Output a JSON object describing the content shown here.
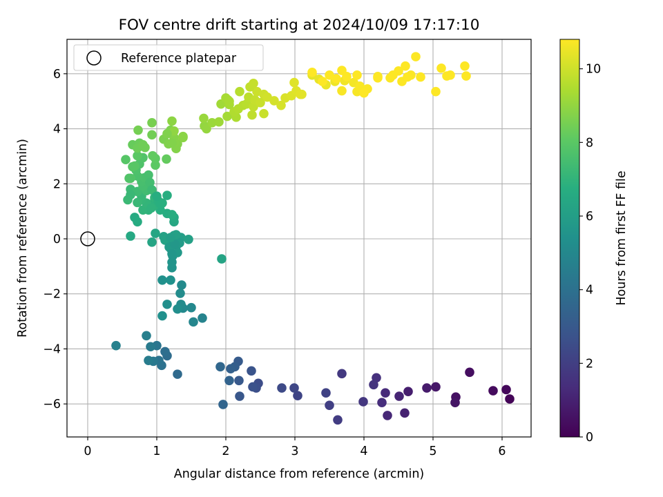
{
  "chart_data": {
    "type": "scatter",
    "title": "FOV centre drift starting at 2024/10/09 17:17:10",
    "xlabel": "Angular distance from reference (arcmin)",
    "ylabel": "Rotation from reference (arcmin)",
    "xlim": [
      -0.3,
      6.42
    ],
    "ylim": [
      -7.2,
      7.25
    ],
    "xticks": [
      0,
      1,
      2,
      3,
      4,
      5,
      6
    ],
    "yticks": [
      -6,
      -4,
      -2,
      0,
      2,
      4,
      6
    ],
    "grid": true,
    "legend": {
      "position": "upper-left",
      "entries": [
        "Reference platepar"
      ]
    },
    "reference_point": {
      "x": 0,
      "y": 0,
      "label": "Reference platepar"
    },
    "colorbar": {
      "label": "Hours from first FF file",
      "colormap": "viridis",
      "range": [
        0,
        10.8
      ],
      "ticks": [
        0,
        2,
        4,
        6,
        8,
        10
      ]
    },
    "series": [
      {
        "points": [
          [
            6.11,
            -5.82,
            0.1
          ],
          [
            6.06,
            -5.48,
            0.2
          ],
          [
            5.87,
            -5.52,
            0.3
          ],
          [
            5.53,
            -4.85,
            0.4
          ],
          [
            5.33,
            -5.75,
            0.5
          ],
          [
            5.32,
            -5.95,
            0.6
          ],
          [
            5.04,
            -5.38,
            0.7
          ],
          [
            4.91,
            -5.42,
            0.8
          ],
          [
            4.64,
            -5.55,
            0.9
          ],
          [
            4.59,
            -6.33,
            1.0
          ],
          [
            4.51,
            -5.72,
            1.1
          ],
          [
            4.34,
            -6.42,
            1.2
          ],
          [
            4.31,
            -5.6,
            1.3
          ],
          [
            4.26,
            -5.95,
            1.4
          ],
          [
            4.18,
            -5.05,
            1.5
          ],
          [
            4.14,
            -5.3,
            1.6
          ],
          [
            3.99,
            -5.92,
            1.7
          ],
          [
            3.68,
            -4.9,
            1.8
          ],
          [
            3.62,
            -6.58,
            1.9
          ],
          [
            3.5,
            -6.05,
            2.0
          ],
          [
            3.45,
            -5.6,
            2.1
          ],
          [
            3.04,
            -5.7,
            2.2
          ],
          [
            2.99,
            -5.42,
            2.3
          ],
          [
            2.81,
            -5.42,
            2.4
          ],
          [
            2.47,
            -5.25,
            2.5
          ],
          [
            2.44,
            -5.42,
            2.6
          ],
          [
            2.39,
            -5.38,
            2.7
          ],
          [
            2.37,
            -4.8,
            2.8
          ],
          [
            2.2,
            -5.72,
            2.9
          ],
          [
            2.19,
            -5.15,
            3.0
          ],
          [
            2.18,
            -4.45,
            3.1
          ],
          [
            2.13,
            -4.65,
            3.2
          ],
          [
            2.07,
            -4.72,
            3.3
          ],
          [
            2.05,
            -5.15,
            3.4
          ],
          [
            1.96,
            -6.02,
            3.5
          ],
          [
            1.92,
            -4.65,
            3.6
          ],
          [
            1.3,
            -4.92,
            3.7
          ],
          [
            1.15,
            -4.25,
            3.8
          ],
          [
            1.12,
            -4.1,
            3.9
          ],
          [
            1.07,
            -4.6,
            4.0
          ],
          [
            1.03,
            -4.42,
            4.1
          ],
          [
            1.0,
            -3.88,
            4.2
          ],
          [
            0.95,
            -4.45,
            4.3
          ],
          [
            0.91,
            -3.92,
            4.4
          ],
          [
            0.88,
            -4.42,
            4.5
          ],
          [
            0.85,
            -3.52,
            4.6
          ],
          [
            0.41,
            -3.88,
            4.7
          ],
          [
            1.66,
            -2.88,
            4.8
          ],
          [
            1.53,
            -3.02,
            4.9
          ],
          [
            1.5,
            -2.5,
            5.0
          ],
          [
            1.38,
            -2.52,
            5.05
          ],
          [
            1.36,
            -1.68,
            5.1
          ],
          [
            1.35,
            -2.38,
            5.15
          ],
          [
            1.34,
            -1.98,
            5.2
          ],
          [
            1.3,
            -2.55,
            5.25
          ],
          [
            1.15,
            -2.38,
            5.3
          ],
          [
            1.08,
            -2.8,
            5.35
          ],
          [
            1.08,
            -1.5,
            5.4
          ],
          [
            1.2,
            -1.5,
            5.45
          ],
          [
            1.22,
            -1.05,
            5.5
          ],
          [
            1.22,
            -0.85,
            5.55
          ],
          [
            1.23,
            -0.62,
            5.6
          ],
          [
            1.25,
            -0.45,
            5.65
          ],
          [
            1.28,
            -0.28,
            5.7
          ],
          [
            1.3,
            -0.5,
            5.75
          ],
          [
            1.32,
            -0.1,
            5.8
          ],
          [
            1.18,
            -0.15,
            5.85
          ],
          [
            1.2,
            -0.35,
            5.9
          ],
          [
            1.25,
            0.12,
            5.95
          ],
          [
            1.35,
            0.05,
            6.0
          ],
          [
            1.28,
            -0.05,
            6.05
          ],
          [
            1.46,
            -0.02,
            6.1
          ],
          [
            1.1,
            0.08,
            6.15
          ],
          [
            1.12,
            -0.05,
            6.2
          ],
          [
            1.94,
            -0.73,
            6.25
          ],
          [
            0.93,
            -0.12,
            6.3
          ],
          [
            0.98,
            0.2,
            6.35
          ],
          [
            1.25,
            0.62,
            6.4
          ],
          [
            0.62,
            0.1,
            6.45
          ],
          [
            1.25,
            0.78,
            6.5
          ],
          [
            0.68,
            0.78,
            6.55
          ],
          [
            0.72,
            0.62,
            6.6
          ],
          [
            1.15,
            0.92,
            6.65
          ],
          [
            1.15,
            1.58,
            6.7
          ],
          [
            1.05,
            1.05,
            6.75
          ],
          [
            1.08,
            1.3,
            6.8
          ],
          [
            0.97,
            1.42,
            6.85
          ],
          [
            0.97,
            1.22,
            6.9
          ],
          [
            0.88,
            1.05,
            6.95
          ],
          [
            0.8,
            1.05,
            7.0
          ],
          [
            0.85,
            1.3,
            7.05
          ],
          [
            0.78,
            1.42,
            7.1
          ],
          [
            0.78,
            1.55,
            7.15
          ],
          [
            0.72,
            1.32,
            7.2
          ],
          [
            0.58,
            1.42,
            7.25
          ],
          [
            0.62,
            1.8,
            7.3
          ],
          [
            0.72,
            1.72,
            7.35
          ],
          [
            0.85,
            1.75,
            7.4
          ],
          [
            0.9,
            1.85,
            7.45
          ],
          [
            0.8,
            1.92,
            7.5
          ],
          [
            0.78,
            2.08,
            7.55
          ],
          [
            0.82,
            2.22,
            7.6
          ],
          [
            0.72,
            2.28,
            7.65
          ],
          [
            0.7,
            2.5,
            7.7
          ],
          [
            0.75,
            2.72,
            7.75
          ],
          [
            0.8,
            2.95,
            7.8
          ],
          [
            0.62,
            2.2,
            7.85
          ],
          [
            0.55,
            2.88,
            7.9
          ],
          [
            0.65,
            2.62,
            7.95
          ],
          [
            0.72,
            3.02,
            8.0
          ],
          [
            0.98,
            2.68,
            8.05
          ],
          [
            0.98,
            2.92,
            8.1
          ],
          [
            0.94,
            3.02,
            8.15
          ],
          [
            1.14,
            2.9,
            8.2
          ],
          [
            0.65,
            3.42,
            8.25
          ],
          [
            0.75,
            3.48,
            8.3
          ],
          [
            0.72,
            3.3,
            8.35
          ],
          [
            0.83,
            3.32,
            8.4
          ],
          [
            0.93,
            3.78,
            8.45
          ],
          [
            0.73,
            3.95,
            8.5
          ],
          [
            0.93,
            4.22,
            8.55
          ],
          [
            1.1,
            3.62,
            8.6
          ],
          [
            1.2,
            3.95,
            8.65
          ],
          [
            1.17,
            3.45,
            8.7
          ],
          [
            1.28,
            3.28,
            8.75
          ],
          [
            1.25,
            3.68,
            8.8
          ],
          [
            1.38,
            3.72,
            8.85
          ],
          [
            1.22,
            4.28,
            8.9
          ],
          [
            1.25,
            3.92,
            8.95
          ],
          [
            1.69,
            4.1,
            9.0
          ],
          [
            1.72,
            4.0,
            9.05
          ],
          [
            1.68,
            4.38,
            9.1
          ],
          [
            1.8,
            4.22,
            9.15
          ],
          [
            1.9,
            4.25,
            9.2
          ],
          [
            1.93,
            4.9,
            9.25
          ],
          [
            2.02,
            4.45,
            9.3
          ],
          [
            2.05,
            4.88,
            9.35
          ],
          [
            2.03,
            5.05,
            9.4
          ],
          [
            2.15,
            4.42,
            9.45
          ],
          [
            2.12,
            4.62,
            9.5
          ],
          [
            2.18,
            4.72,
            9.55
          ],
          [
            2.25,
            4.85,
            9.6
          ],
          [
            2.3,
            4.9,
            9.65
          ],
          [
            2.33,
            5.15,
            9.7
          ],
          [
            2.38,
            4.5,
            9.75
          ],
          [
            2.4,
            4.8,
            9.8
          ],
          [
            2.42,
            5.05,
            9.85
          ],
          [
            2.5,
            4.95,
            9.9
          ],
          [
            2.45,
            5.35,
            9.95
          ],
          [
            2.55,
            5.25,
            10.0
          ],
          [
            2.6,
            5.15,
            10.05
          ],
          [
            2.7,
            5.02,
            10.1
          ],
          [
            2.8,
            4.85,
            10.15
          ],
          [
            2.86,
            5.12,
            10.2
          ],
          [
            2.95,
            5.2,
            10.25
          ],
          [
            3.02,
            5.38,
            10.3
          ],
          [
            3.08,
            5.25,
            10.35
          ],
          [
            3.25,
            5.95,
            10.4
          ],
          [
            3.35,
            5.8,
            10.45
          ],
          [
            3.45,
            5.6,
            10.5
          ],
          [
            3.58,
            5.72,
            10.55
          ],
          [
            3.72,
            5.75,
            10.6
          ],
          [
            3.85,
            5.68,
            10.65
          ],
          [
            3.9,
            5.35,
            10.7
          ],
          [
            3.68,
            5.38,
            10.72
          ],
          [
            3.94,
            5.55,
            10.74
          ],
          [
            4.05,
            5.45,
            10.75
          ],
          [
            4.2,
            5.9,
            10.76
          ],
          [
            4.38,
            5.85,
            10.77
          ],
          [
            4.55,
            5.72,
            10.78
          ],
          [
            4.68,
            5.95,
            10.78
          ],
          [
            4.75,
            6.62,
            10.79
          ],
          [
            4.82,
            5.88,
            10.8
          ],
          [
            5.04,
            5.35,
            10.8
          ],
          [
            5.12,
            6.2,
            10.8
          ],
          [
            5.2,
            5.92,
            10.8
          ],
          [
            5.25,
            5.95,
            10.8
          ],
          [
            5.48,
            5.92,
            10.8
          ],
          [
            5.46,
            6.28,
            10.8
          ],
          [
            4.5,
            6.1,
            10.8
          ],
          [
            4.6,
            6.28,
            10.8
          ],
          [
            4.63,
            5.88,
            10.8
          ],
          [
            4.42,
            5.95,
            10.8
          ],
          [
            4.2,
            5.85,
            10.8
          ],
          [
            3.9,
            5.95,
            10.8
          ],
          [
            3.75,
            5.9,
            10.8
          ],
          [
            3.6,
            5.82,
            10.8
          ],
          [
            3.5,
            5.95,
            10.8
          ],
          [
            3.4,
            5.72,
            10.8
          ],
          [
            3.25,
            6.05,
            10.8
          ],
          [
            3.68,
            6.12,
            10.8
          ],
          [
            4.0,
            5.3,
            10.8
          ],
          [
            3.1,
            5.25,
            10.35
          ],
          [
            2.99,
            5.68,
            10.3
          ],
          [
            2.35,
            5.52,
            9.8
          ],
          [
            2.4,
            5.65,
            9.85
          ],
          [
            2.2,
            5.35,
            9.6
          ],
          [
            2.55,
            4.55,
            9.9
          ],
          [
            2.0,
            5.12,
            9.35
          ],
          [
            2.05,
            5.0,
            9.38
          ],
          [
            1.3,
            3.45,
            8.75
          ],
          [
            1.38,
            3.68,
            8.85
          ],
          [
            1.26,
            3.52,
            8.78
          ],
          [
            1.15,
            3.82,
            8.68
          ],
          [
            1.22,
            3.48,
            8.72
          ],
          [
            0.8,
            3.42,
            8.4
          ],
          [
            0.68,
            2.65,
            7.95
          ],
          [
            0.6,
            2.2,
            7.8
          ],
          [
            0.88,
            2.32,
            7.55
          ],
          [
            0.9,
            2.05,
            7.45
          ],
          [
            0.93,
            1.78,
            7.3
          ],
          [
            0.62,
            1.6,
            7.22
          ],
          [
            0.97,
            1.5,
            7.0
          ],
          [
            0.92,
            1.12,
            6.95
          ],
          [
            1.02,
            1.38,
            6.82
          ],
          [
            1.05,
            1.28,
            6.78
          ],
          [
            1.22,
            0.88,
            6.7
          ],
          [
            1.0,
            1.55,
            6.72
          ],
          [
            1.28,
            0.15,
            6.1
          ],
          [
            1.33,
            -0.15,
            5.88
          ],
          [
            1.18,
            -0.3,
            5.8
          ],
          [
            1.22,
            -0.55,
            5.62
          ],
          [
            1.26,
            -0.2,
            5.7
          ],
          [
            1.2,
            0.05,
            6.0
          ]
        ]
      }
    ]
  }
}
